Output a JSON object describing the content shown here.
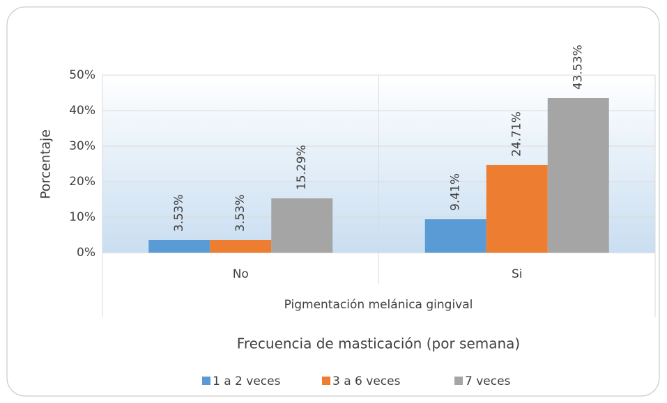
{
  "chart_data": {
    "type": "bar",
    "categories": [
      "No",
      "Si"
    ],
    "group_label": "Pigmentación melánica gingival",
    "x_label": "Frecuencia de masticación (por semana)",
    "y_label": "Porcentaje",
    "series": [
      {
        "name": "1 a 2 veces",
        "color": "#5b9bd5",
        "values": [
          3.53,
          9.41
        ],
        "value_labels": [
          "3.53%",
          "9.41%"
        ]
      },
      {
        "name": "3 a 6 veces",
        "color": "#ed7d31",
        "values": [
          3.53,
          24.71
        ],
        "value_labels": [
          "3.53%",
          "24.71%"
        ]
      },
      {
        "name": "7 veces",
        "color": "#a5a5a5",
        "values": [
          15.29,
          43.53
        ],
        "value_labels": [
          "15.29%",
          "43.53%"
        ]
      }
    ],
    "ylim": [
      0,
      50
    ],
    "yticks": [
      {
        "value": 0,
        "label": "0%"
      },
      {
        "value": 10,
        "label": "10%"
      },
      {
        "value": 20,
        "label": "20%"
      },
      {
        "value": 30,
        "label": "30%"
      },
      {
        "value": 40,
        "label": "40%"
      },
      {
        "value": 50,
        "label": "50%"
      }
    ],
    "grid": true,
    "legend": "bottom"
  }
}
